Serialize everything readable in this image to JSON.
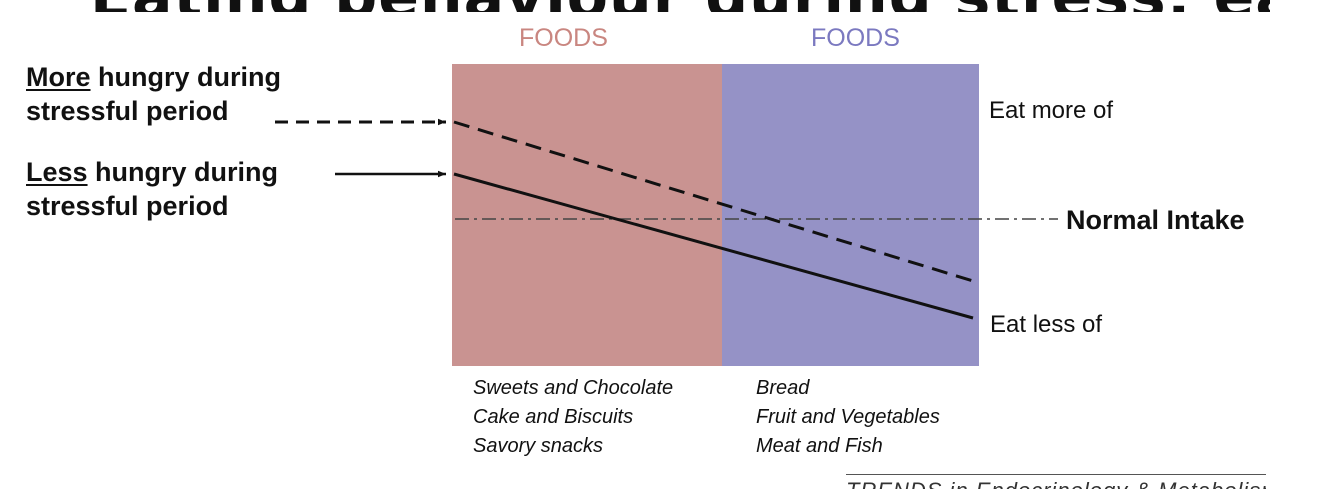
{
  "title_fragment": "Eating behaviour during stress: eating changes",
  "colors": {
    "left_zone": "#c99391",
    "right_zone": "#9592c6",
    "left_heading": "#c98680",
    "right_heading": "#7b79c0",
    "line": "#111111",
    "normal_line": "#444444"
  },
  "zones": {
    "left": {
      "heading": "FOODS",
      "items": [
        "Sweets and Chocolate",
        "Cake and Biscuits",
        "Savory snacks"
      ]
    },
    "right": {
      "heading": "FOODS",
      "items": [
        "Bread",
        "Fruit and Vegetables",
        "Meat and Fish"
      ]
    }
  },
  "groups": {
    "more": {
      "emph": "More",
      "rest": " hungry during",
      "line2": "stressful period",
      "style": "dashed"
    },
    "less": {
      "emph": "Less",
      "rest": " hungry during",
      "line2": "stressful period",
      "style": "solid"
    }
  },
  "scale": {
    "top": "Eat more of",
    "bottom": "Eat less of",
    "baseline": "Normal Intake"
  },
  "source_fragment": "TRENDS in Endocrinology & Metabolism"
}
